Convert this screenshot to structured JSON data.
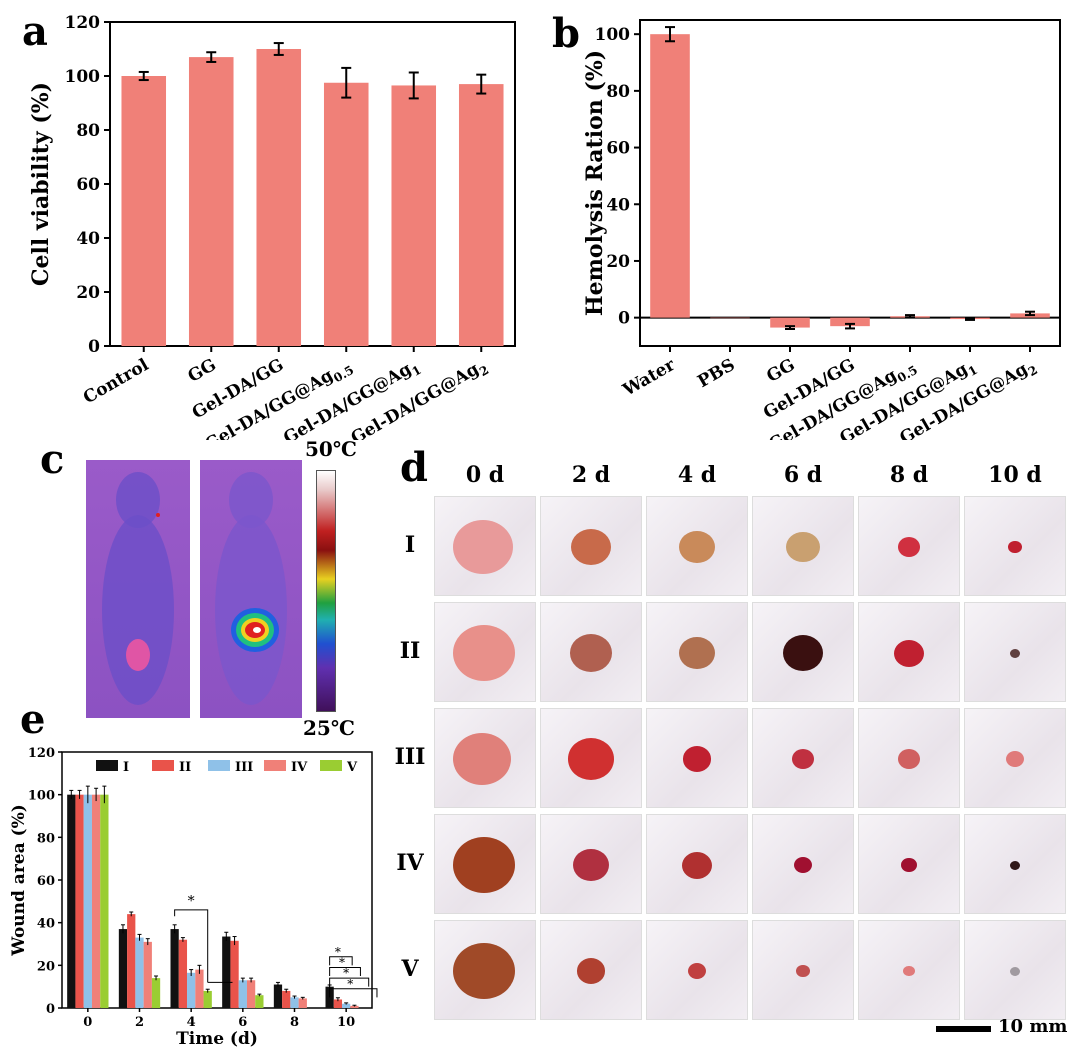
{
  "panels": {
    "a": "a",
    "b": "b",
    "c": "c",
    "d": "d",
    "e": "e"
  },
  "chart_data": [
    {
      "id": "a",
      "type": "bar",
      "categories": [
        "Control",
        "GG",
        "Gel-DA/GG",
        "Gel-DA/GG@Ag0.5",
        "Gel-DA/GG@Ag1",
        "Gel-DA/GG@Ag2"
      ],
      "category_labels": [
        {
          "main": "Control",
          "sub": ""
        },
        {
          "main": "GG",
          "sub": ""
        },
        {
          "main": "Gel-DA/GG",
          "sub": ""
        },
        {
          "main": "Gel-DA/GG@Ag",
          "sub": "0.5"
        },
        {
          "main": "Gel-DA/GG@Ag",
          "sub": "1"
        },
        {
          "main": "Gel-DA/GG@Ag",
          "sub": "2"
        }
      ],
      "values": [
        100,
        107,
        110,
        97.5,
        96.5,
        97
      ],
      "errors": [
        1.5,
        1.8,
        2.2,
        5.5,
        4.8,
        3.5
      ],
      "ylabel": "Cell viability (%)",
      "ylim": [
        0,
        120
      ],
      "yticks": [
        0,
        20,
        40,
        60,
        80,
        100,
        120
      ],
      "bar_color": "#f08078"
    },
    {
      "id": "b",
      "type": "bar",
      "categories": [
        "Water",
        "PBS",
        "GG",
        "Gel-DA/GG",
        "Gel-DA/GG@Ag0.5",
        "Gel-DA/GG@Ag1",
        "Gel-DA/GG@Ag2"
      ],
      "category_labels": [
        {
          "main": "Water",
          "sub": ""
        },
        {
          "main": "PBS",
          "sub": ""
        },
        {
          "main": "GG",
          "sub": ""
        },
        {
          "main": "Gel-DA/GG",
          "sub": ""
        },
        {
          "main": "Gel-DA/GG@Ag",
          "sub": "0.5"
        },
        {
          "main": "Gel-DA/GG@Ag",
          "sub": "1"
        },
        {
          "main": "Gel-DA/GG@Ag",
          "sub": "2"
        }
      ],
      "values": [
        100,
        0,
        -3.5,
        -3,
        0.5,
        -0.5,
        1.5
      ],
      "errors": [
        2.5,
        0,
        0.5,
        0.8,
        0.4,
        0.3,
        0.6
      ],
      "ylabel": "Hemolysis Ration (%)",
      "ylim": [
        -10,
        105
      ],
      "yticks": [
        0,
        20,
        40,
        60,
        80,
        100
      ],
      "bar_color": "#f08078"
    },
    {
      "id": "e",
      "type": "bar",
      "categories": [
        "0",
        "2",
        "4",
        "6",
        "8",
        "10"
      ],
      "series": [
        {
          "name": "I",
          "color": "#111111",
          "values": [
            100,
            37,
            37,
            33.5,
            11,
            10
          ],
          "errors": [
            2,
            2,
            2,
            2,
            1,
            0.8
          ]
        },
        {
          "name": "II",
          "color": "#e9534a",
          "values": [
            100,
            44,
            32,
            31.5,
            8,
            4
          ],
          "errors": [
            2,
            1,
            1,
            2,
            0.8,
            0.8
          ]
        },
        {
          "name": "III",
          "color": "#8fc1e8",
          "values": [
            100,
            33,
            16.5,
            13,
            5,
            2
          ],
          "errors": [
            4,
            1.5,
            1.5,
            1,
            0.6,
            0.4
          ]
        },
        {
          "name": "IV",
          "color": "#f08078",
          "values": [
            100,
            31,
            18,
            13,
            4.5,
            1
          ],
          "errors": [
            3,
            1.5,
            2,
            1,
            0.5,
            0.3
          ]
        },
        {
          "name": "V",
          "color": "#9acd32",
          "values": [
            100,
            14,
            8,
            6,
            0,
            0
          ],
          "errors": [
            4,
            1,
            0.8,
            0.5,
            0,
            0
          ]
        }
      ],
      "xlabel": "Time (d)",
      "ylabel": "Wound area (%)",
      "ylim": [
        0,
        120
      ],
      "yticks": [
        0,
        20,
        40,
        60,
        80,
        100,
        120
      ],
      "significance": "*",
      "legend_position": "top"
    }
  ],
  "thermal": {
    "max_label": "50℃",
    "min_label": "25℃"
  },
  "photos": {
    "columns": [
      "0 d",
      "2 d",
      "4 d",
      "6 d",
      "8 d",
      "10 d"
    ],
    "rows": [
      "I",
      "II",
      "III",
      "IV",
      "V"
    ],
    "scale_bar": "10 mm"
  }
}
